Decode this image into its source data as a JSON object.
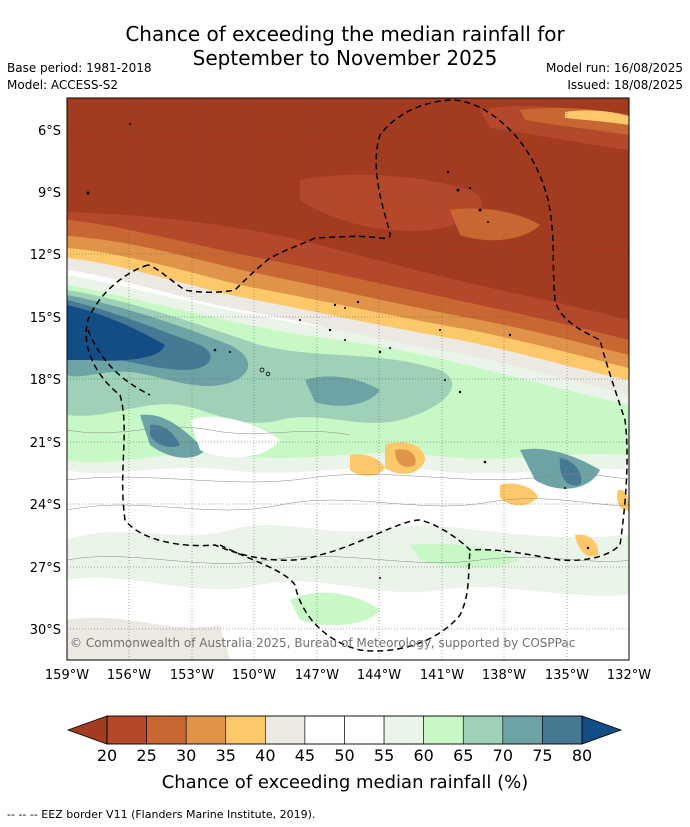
{
  "title_line1": "Chance of exceeding the median rainfall for",
  "title_line2": "September to November 2025",
  "base_period": "Base period: 1981-2018",
  "model": "Model: ACCESS-S2",
  "model_run": "Model run: 16/08/2025",
  "issued": "Issued: 18/08/2025",
  "copyright": "© Commonwealth of Australia 2025, Bureau of Meteorology, supported by COSPPac",
  "footer": "--  --  -- EEZ border V11 (Flanders Marine Institute, 2019).",
  "map": {
    "lon_labels": [
      "159°W",
      "156°W",
      "153°W",
      "150°W",
      "147°W",
      "144°W",
      "141°W",
      "138°W",
      "135°W",
      "132°W"
    ],
    "lat_labels": [
      "6°S",
      "9°S",
      "12°S",
      "15°S",
      "18°S",
      "21°S",
      "24°S",
      "27°S",
      "30°S"
    ],
    "lon_range": [
      -159,
      -132
    ],
    "lat_range": [
      -31.5,
      -4.5
    ]
  },
  "colorbar": {
    "title": "Chance of exceeding median rainfall (%)",
    "ticks": [
      "20",
      "25",
      "30",
      "35",
      "40",
      "45",
      "50",
      "55",
      "60",
      "65",
      "70",
      "75",
      "80"
    ],
    "colors": [
      "#a23b1f",
      "#b5482a",
      "#c96732",
      "#e0944a",
      "#fdc86a",
      "#ece8e2",
      "#ffffff",
      "#ffffff",
      "#eaf4e8",
      "#c8f8c6",
      "#9ed1b8",
      "#6ea3a6",
      "#467994",
      "#124d86"
    ]
  }
}
